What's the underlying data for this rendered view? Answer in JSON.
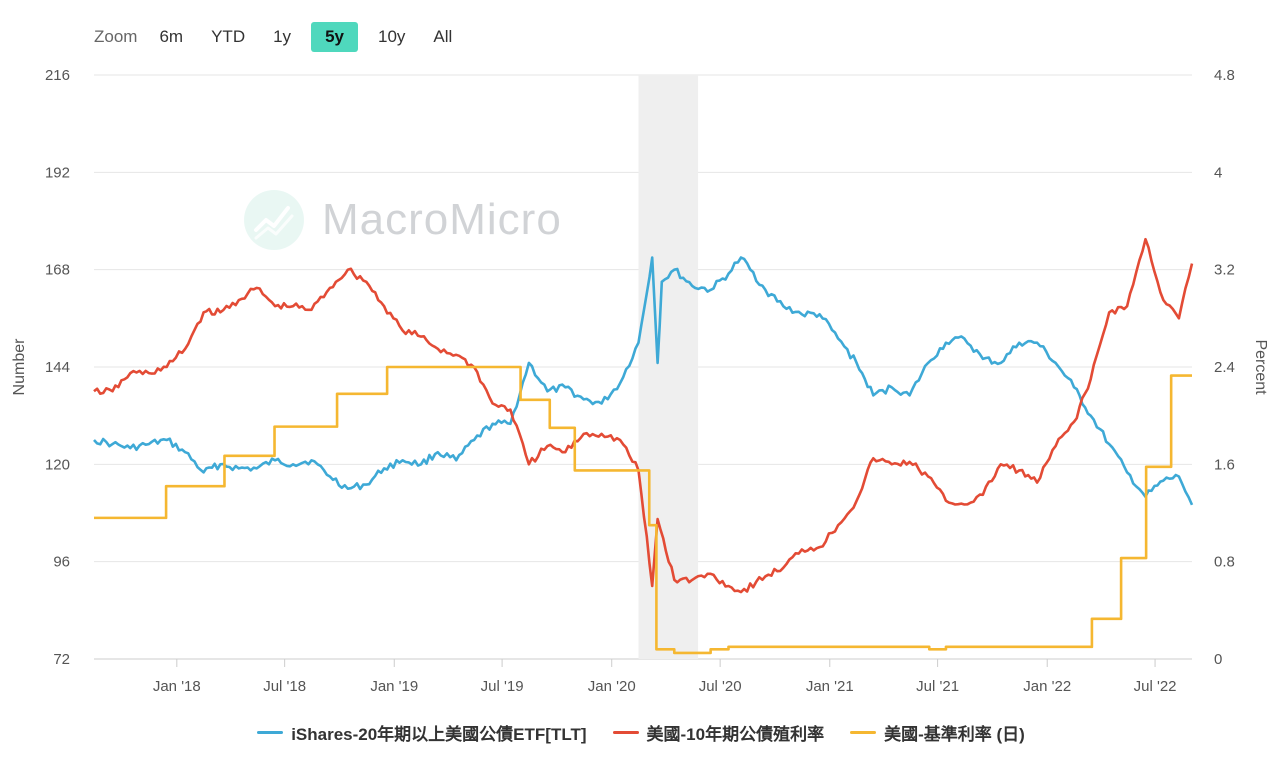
{
  "zoom": {
    "label": "Zoom",
    "buttons": [
      "6m",
      "YTD",
      "1y",
      "5y",
      "10y",
      "All"
    ],
    "active": "5y"
  },
  "watermark": {
    "text": "MacroMicro"
  },
  "chart_data": {
    "type": "line",
    "x_ticks": [
      "Jan '18",
      "Jul '18",
      "Jan '19",
      "Jul '19",
      "Jan '20",
      "Jul '20",
      "Jan '21",
      "Jul '21",
      "Jan '22",
      "Jul '22"
    ],
    "x_range": [
      "2017-08-15",
      "2022-09-01"
    ],
    "left_axis": {
      "title": "Number",
      "ticks": [
        "72",
        "96",
        "120",
        "144",
        "168",
        "192",
        "216"
      ],
      "range": [
        72,
        216
      ]
    },
    "right_axis": {
      "title": "Percent",
      "ticks": [
        "0",
        "0.8",
        "1.6",
        "2.4",
        "3.2",
        "4",
        "4.8"
      ],
      "range": [
        0,
        4.8
      ]
    },
    "shaded_region": {
      "from": "2020-02-15",
      "to": "2020-05-25",
      "color": "#efefef"
    },
    "grid": "horizontal",
    "legend_position": "bottom",
    "series": [
      {
        "name": "iShares-20年期以上美國公債ETF[TLT]",
        "axis": "left",
        "color": "#3ea9d6",
        "points": [
          [
            "2017-08-15",
            126
          ],
          [
            "2017-09-15",
            125
          ],
          [
            "2017-10-15",
            124
          ],
          [
            "2017-11-15",
            125
          ],
          [
            "2017-12-15",
            126
          ],
          [
            "2018-01-15",
            123
          ],
          [
            "2018-02-15",
            118
          ],
          [
            "2018-03-15",
            120
          ],
          [
            "2018-04-15",
            119
          ],
          [
            "2018-05-15",
            119
          ],
          [
            "2018-06-15",
            121
          ],
          [
            "2018-07-15",
            120
          ],
          [
            "2018-08-15",
            121
          ],
          [
            "2018-09-15",
            117
          ],
          [
            "2018-10-15",
            114
          ],
          [
            "2018-11-15",
            115
          ],
          [
            "2018-12-15",
            119
          ],
          [
            "2019-01-15",
            121
          ],
          [
            "2019-02-15",
            120
          ],
          [
            "2019-03-15",
            123
          ],
          [
            "2019-04-15",
            121
          ],
          [
            "2019-05-15",
            126
          ],
          [
            "2019-06-15",
            130
          ],
          [
            "2019-07-15",
            130
          ],
          [
            "2019-08-15",
            145
          ],
          [
            "2019-09-15",
            138
          ],
          [
            "2019-10-15",
            139
          ],
          [
            "2019-11-15",
            136
          ],
          [
            "2019-12-15",
            135
          ],
          [
            "2020-01-15",
            140
          ],
          [
            "2020-02-15",
            150
          ],
          [
            "2020-03-09",
            171
          ],
          [
            "2020-03-18",
            145
          ],
          [
            "2020-03-25",
            165
          ],
          [
            "2020-04-15",
            168
          ],
          [
            "2020-05-15",
            164
          ],
          [
            "2020-06-15",
            163
          ],
          [
            "2020-07-15",
            167
          ],
          [
            "2020-08-05",
            171
          ],
          [
            "2020-09-15",
            163
          ],
          [
            "2020-10-15",
            159
          ],
          [
            "2020-11-15",
            157
          ],
          [
            "2020-12-15",
            157
          ],
          [
            "2021-01-15",
            151
          ],
          [
            "2021-02-15",
            145
          ],
          [
            "2021-03-15",
            137
          ],
          [
            "2021-04-15",
            139
          ],
          [
            "2021-05-15",
            137
          ],
          [
            "2021-06-15",
            145
          ],
          [
            "2021-07-15",
            150
          ],
          [
            "2021-08-15",
            151
          ],
          [
            "2021-09-15",
            146
          ],
          [
            "2021-10-15",
            145
          ],
          [
            "2021-11-15",
            150
          ],
          [
            "2021-12-15",
            150
          ],
          [
            "2022-01-15",
            145
          ],
          [
            "2022-02-15",
            139
          ],
          [
            "2022-03-15",
            132
          ],
          [
            "2022-04-15",
            125
          ],
          [
            "2022-05-15",
            118
          ],
          [
            "2022-06-15",
            112
          ],
          [
            "2022-07-15",
            116
          ],
          [
            "2022-08-10",
            117
          ],
          [
            "2022-09-01",
            110
          ]
        ]
      },
      {
        "name": "美國-10年期公債殖利率",
        "axis": "right",
        "color": "#e34b35",
        "points": [
          [
            "2017-08-15",
            2.2
          ],
          [
            "2017-09-15",
            2.2
          ],
          [
            "2017-10-15",
            2.35
          ],
          [
            "2017-11-15",
            2.35
          ],
          [
            "2017-12-15",
            2.4
          ],
          [
            "2018-01-15",
            2.55
          ],
          [
            "2018-02-15",
            2.85
          ],
          [
            "2018-03-15",
            2.85
          ],
          [
            "2018-04-15",
            2.95
          ],
          [
            "2018-05-15",
            3.05
          ],
          [
            "2018-06-15",
            2.9
          ],
          [
            "2018-07-15",
            2.9
          ],
          [
            "2018-08-15",
            2.87
          ],
          [
            "2018-09-15",
            3.05
          ],
          [
            "2018-10-15",
            3.2
          ],
          [
            "2018-11-15",
            3.1
          ],
          [
            "2018-12-15",
            2.9
          ],
          [
            "2019-01-15",
            2.7
          ],
          [
            "2019-02-15",
            2.65
          ],
          [
            "2019-03-15",
            2.55
          ],
          [
            "2019-04-15",
            2.5
          ],
          [
            "2019-05-15",
            2.4
          ],
          [
            "2019-06-15",
            2.1
          ],
          [
            "2019-07-15",
            2.05
          ],
          [
            "2019-08-15",
            1.6
          ],
          [
            "2019-09-15",
            1.75
          ],
          [
            "2019-10-15",
            1.7
          ],
          [
            "2019-11-15",
            1.85
          ],
          [
            "2019-12-15",
            1.85
          ],
          [
            "2020-01-15",
            1.8
          ],
          [
            "2020-02-15",
            1.55
          ],
          [
            "2020-03-09",
            0.6
          ],
          [
            "2020-03-18",
            1.15
          ],
          [
            "2020-04-15",
            0.65
          ],
          [
            "2020-05-15",
            0.65
          ],
          [
            "2020-06-15",
            0.7
          ],
          [
            "2020-07-15",
            0.6
          ],
          [
            "2020-08-05",
            0.55
          ],
          [
            "2020-09-15",
            0.68
          ],
          [
            "2020-10-15",
            0.75
          ],
          [
            "2020-11-15",
            0.9
          ],
          [
            "2020-12-15",
            0.92
          ],
          [
            "2021-01-15",
            1.1
          ],
          [
            "2021-02-15",
            1.3
          ],
          [
            "2021-03-15",
            1.65
          ],
          [
            "2021-04-15",
            1.6
          ],
          [
            "2021-05-15",
            1.62
          ],
          [
            "2021-06-15",
            1.5
          ],
          [
            "2021-07-15",
            1.3
          ],
          [
            "2021-08-15",
            1.27
          ],
          [
            "2021-09-15",
            1.35
          ],
          [
            "2021-10-15",
            1.6
          ],
          [
            "2021-11-15",
            1.55
          ],
          [
            "2021-12-15",
            1.45
          ],
          [
            "2022-01-15",
            1.75
          ],
          [
            "2022-02-15",
            1.95
          ],
          [
            "2022-03-15",
            2.3
          ],
          [
            "2022-04-15",
            2.85
          ],
          [
            "2022-05-15",
            2.9
          ],
          [
            "2022-06-15",
            3.45
          ],
          [
            "2022-07-15",
            2.95
          ],
          [
            "2022-08-10",
            2.8
          ],
          [
            "2022-09-01",
            3.25
          ]
        ]
      },
      {
        "name": "美國-基準利率 (日)",
        "axis": "right",
        "color": "#f5b731",
        "step": true,
        "points": [
          [
            "2017-08-15",
            1.16
          ],
          [
            "2017-12-14",
            1.42
          ],
          [
            "2018-03-22",
            1.67
          ],
          [
            "2018-06-14",
            1.91
          ],
          [
            "2018-09-27",
            2.18
          ],
          [
            "2018-12-20",
            2.4
          ],
          [
            "2019-08-01",
            2.13
          ],
          [
            "2019-09-19",
            1.9
          ],
          [
            "2019-10-31",
            1.55
          ],
          [
            "2020-03-04",
            1.1
          ],
          [
            "2020-03-16",
            0.08
          ],
          [
            "2020-04-15",
            0.05
          ],
          [
            "2020-06-15",
            0.08
          ],
          [
            "2020-07-15",
            0.1
          ],
          [
            "2021-06-17",
            0.08
          ],
          [
            "2021-07-15",
            0.1
          ],
          [
            "2022-03-17",
            0.33
          ],
          [
            "2022-05-05",
            0.83
          ],
          [
            "2022-06-16",
            1.58
          ],
          [
            "2022-07-28",
            2.33
          ],
          [
            "2022-09-01",
            2.33
          ]
        ]
      }
    ]
  }
}
